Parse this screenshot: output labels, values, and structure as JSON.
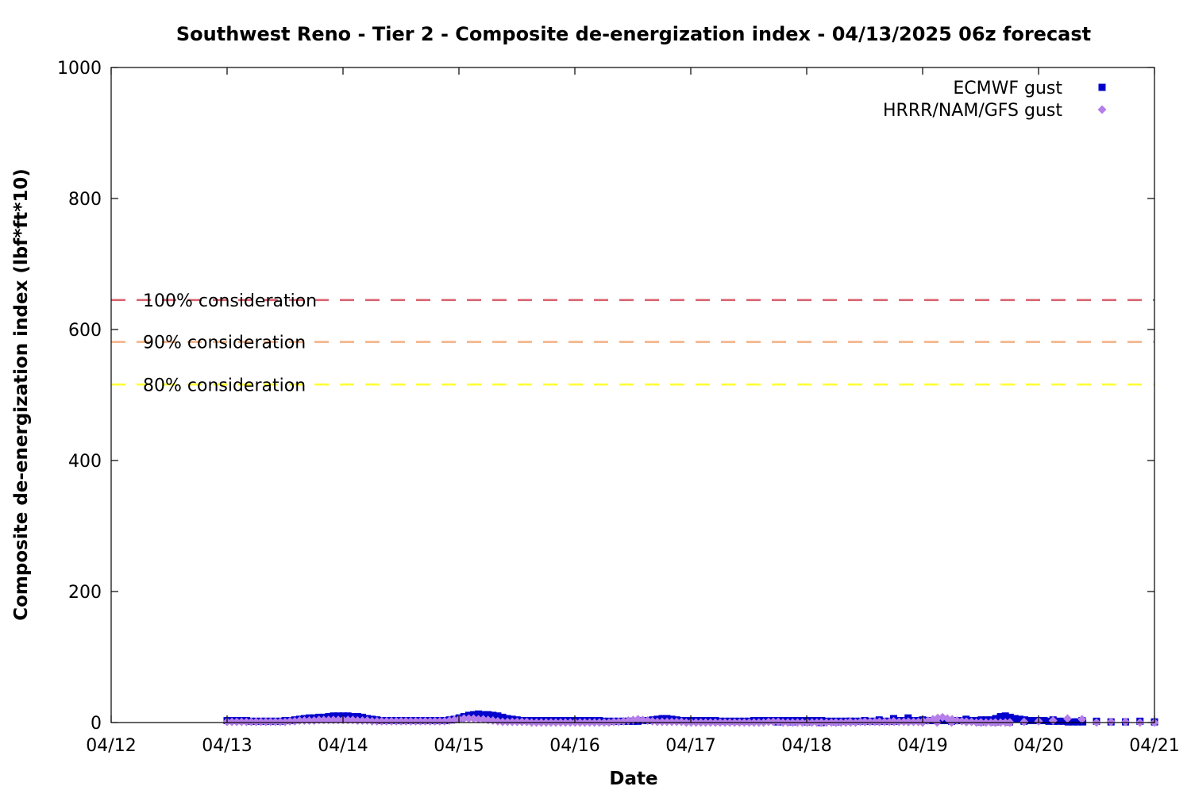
{
  "chart_data": {
    "type": "scatter",
    "title": "Southwest Reno - Tier 2 - Composite de-energization index - 04/13/2025 06z forecast",
    "xlabel": "Date",
    "ylabel": "Composite de-energization index (lbf*ft*10)",
    "ylim": [
      0,
      1000
    ],
    "xlim_days": [
      0,
      9
    ],
    "x_ticks": [
      "04/12",
      "04/13",
      "04/14",
      "04/15",
      "04/16",
      "04/17",
      "04/18",
      "04/19",
      "04/20",
      "04/21"
    ],
    "y_ticks": [
      "0",
      "200",
      "400",
      "600",
      "800",
      "1000"
    ],
    "legend_position": "top-right",
    "grid": false,
    "reference_lines": [
      {
        "label": "100% consideration",
        "value": 645,
        "color": "#d95f6e"
      },
      {
        "label": "90% consideration",
        "value": 581,
        "color": "#f4b183"
      },
      {
        "label": "80% consideration",
        "value": 516,
        "color": "#ffff33"
      }
    ],
    "series": [
      {
        "name": "ECMWF gust",
        "color": "#0000cc",
        "marker": "square",
        "segments": [
          {
            "start": 1.0,
            "step": 0.0417,
            "values": [
              3,
              3,
              3,
              3,
              3,
              2,
              2,
              2,
              2,
              2,
              2,
              2,
              3,
              3,
              4,
              5,
              6,
              7,
              7,
              8,
              8,
              9,
              10,
              10,
              10,
              10,
              9,
              9,
              8,
              6,
              5,
              4,
              3,
              3,
              3,
              3,
              3,
              3,
              3,
              3,
              3,
              3,
              3,
              3,
              3,
              3,
              4,
              5,
              7,
              9,
              11,
              12,
              13,
              12,
              12,
              11,
              10,
              8,
              6,
              5,
              4,
              3,
              3,
              3,
              3,
              3,
              3,
              3,
              3,
              3,
              3,
              3,
              3,
              3,
              3,
              3,
              3,
              3,
              2,
              2,
              2,
              2,
              2,
              2,
              2,
              2,
              3,
              3,
              4,
              5,
              6,
              6,
              5,
              4,
              3,
              3,
              3,
              3,
              3,
              3,
              3,
              3,
              2,
              2,
              2,
              2,
              2,
              2,
              2,
              3,
              3,
              3,
              3,
              3,
              3,
              3,
              3,
              3,
              3,
              3,
              3,
              3,
              3,
              3,
              2,
              2,
              2,
              2,
              2,
              2,
              2,
              2,
              2,
              2,
              2,
              2,
              2,
              2,
              2,
              3,
              3,
              3,
              3,
              3,
              3,
              3,
              3,
              3,
              3,
              3,
              3,
              3,
              3,
              3,
              3,
              3,
              4,
              4,
              4,
              6,
              9,
              10,
              8,
              6,
              5,
              4,
              3,
              3,
              3,
              3,
              2,
              2,
              2,
              2,
              1,
              1,
              1,
              1
            ]
          },
          {
            "start": 5.75,
            "step": 0.125,
            "values": [
              1,
              1,
              1
            ]
          },
          {
            "start": 6.125,
            "step": 0.125,
            "values": [
              0,
              1,
              2,
              3,
              4,
              6,
              7,
              4,
              3,
              2,
              5,
              1,
              1,
              1,
              2,
              3,
              4,
              2,
              3,
              2,
              1,
              1,
              2,
              1,
              1,
              2,
              3,
              6,
              8,
              14,
              1,
              1
            ]
          }
        ]
      },
      {
        "name": "HRRR/NAM/GFS gust",
        "color": "#b57ee8",
        "marker": "diamond",
        "segments": [
          {
            "start": 1.0,
            "step": 0.0417,
            "values": [
              1,
              1,
              1,
              1,
              1,
              1,
              1,
              1,
              1,
              1,
              1,
              1,
              1,
              2,
              2,
              3,
              3,
              3,
              3,
              4,
              4,
              4,
              4,
              4,
              4,
              4,
              4,
              3,
              3,
              3,
              2,
              2,
              2,
              2,
              2,
              2,
              2,
              2,
              2,
              2,
              2,
              2,
              2,
              2,
              2,
              2,
              3,
              4,
              5,
              6,
              6,
              6,
              5,
              5,
              4,
              3,
              2,
              1,
              1,
              1,
              1,
              1,
              1,
              0,
              0,
              0,
              0,
              0,
              0,
              0,
              0,
              0,
              0,
              0,
              0,
              0,
              0,
              0,
              0,
              0,
              1,
              1,
              2,
              3,
              4,
              5,
              4,
              3,
              2,
              1,
              1,
              1,
              1,
              1,
              1,
              0,
              0,
              0,
              0,
              0,
              0,
              0,
              0,
              0,
              0,
              0,
              0,
              0,
              0,
              0,
              0,
              0,
              1,
              1,
              1,
              0,
              0,
              0,
              0,
              0,
              0,
              0,
              0,
              0,
              0,
              0,
              0,
              0,
              0,
              0,
              0,
              1,
              1,
              1,
              1,
              1,
              1,
              1,
              1,
              1,
              1,
              1,
              1,
              1,
              2,
              3,
              5,
              7,
              8,
              6,
              5,
              3,
              2,
              1,
              1,
              0,
              0,
              0,
              0,
              0,
              0,
              0,
              0
            ]
          },
          {
            "start": 6.125,
            "step": 0.125,
            "values": [
              0,
              0,
              1,
              1,
              1,
              2,
              1,
              0,
              0,
              0,
              1,
              0,
              0,
              0,
              1,
              2,
              3,
              6,
              5,
              0,
              1,
              1,
              0,
              0,
              0,
              1,
              3,
              5,
              8,
              10,
              1,
              0
            ]
          }
        ]
      }
    ]
  }
}
